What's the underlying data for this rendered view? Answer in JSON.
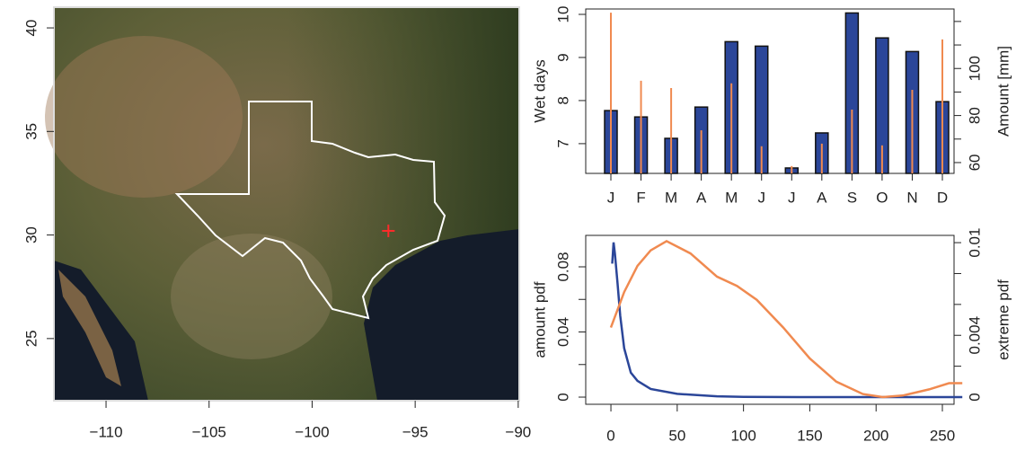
{
  "chart_data": [
    {
      "type": "map",
      "xlim": [
        -112.53,
        -89.95
      ],
      "ylim": [
        22,
        41
      ],
      "xticks": [
        {
          "value": -110,
          "label": "−110"
        },
        {
          "value": -105,
          "label": "−105"
        },
        {
          "value": -100,
          "label": "−100"
        },
        {
          "value": -95,
          "label": "−95"
        },
        {
          "value": -90,
          "label": "−90"
        }
      ],
      "yticks": [
        25,
        30,
        35,
        40
      ],
      "marker": {
        "x": -96.3,
        "y": 30.2,
        "color": "#ff2a2a"
      }
    },
    {
      "type": "bar",
      "categories": [
        "J",
        "F",
        "M",
        "A",
        "M",
        "J",
        "J",
        "A",
        "S",
        "O",
        "N",
        "D"
      ],
      "series": [
        {
          "name": "Wet days",
          "color": "#f08a50",
          "values": [
            10.04,
            8.46,
            8.29,
            7.31,
            8.4,
            6.94,
            6.48,
            7.0,
            7.79,
            6.96,
            8.25,
            9.42
          ]
        },
        {
          "name": "Amount [mm]",
          "color": "#2b4699",
          "axis": "y2",
          "values": [
            82.1,
            79.4,
            70.3,
            83.6,
            111.4,
            109.5,
            57.7,
            72.6,
            123.6,
            113.0,
            107.2,
            85.9
          ]
        }
      ],
      "ylim": [
        6.31,
        10.125
      ],
      "yticks": [
        7,
        8,
        9,
        10
      ],
      "y2lim": [
        55.4,
        125.3
      ],
      "y2ticks": [
        60,
        80,
        100
      ],
      "y2minorticks": [
        70,
        90,
        110,
        120
      ]
    },
    {
      "type": "line",
      "series": [
        {
          "name": "amount pdf",
          "color": "#2b4699",
          "x": [
            1,
            2,
            3,
            5,
            7,
            10,
            15,
            20,
            30,
            50,
            80,
            100,
            150,
            200,
            265
          ],
          "values": [
            0.082,
            0.095,
            0.088,
            0.07,
            0.05,
            0.03,
            0.015,
            0.01,
            0.005,
            0.002,
            0.0005,
            0.0002,
            0,
            0,
            0
          ]
        },
        {
          "name": "extreme pdf",
          "color": "#f08a50",
          "axis": "y2",
          "x": [
            0,
            10,
            20,
            30,
            42,
            60,
            80,
            95,
            110,
            130,
            150,
            170,
            190,
            205,
            220,
            240,
            255,
            265
          ],
          "values": [
            0.0045,
            0.0068,
            0.0085,
            0.0095,
            0.0101,
            0.0093,
            0.0078,
            0.0072,
            0.0063,
            0.0045,
            0.0025,
            0.001,
            0.0002,
            0,
            0.0001,
            0.0005,
            0.0009,
            0.0009
          ]
        }
      ],
      "xlim": [
        -19,
        258.8
      ],
      "xticks": [
        0,
        50,
        100,
        150,
        200,
        250
      ],
      "ylim": [
        -0.0044,
        0.0993
      ],
      "yticks": [
        0,
        0.04,
        0.08
      ],
      "yminorticks": [
        0.02,
        0.06
      ],
      "y2lim": [
        -0.000465,
        0.01047
      ],
      "y2ticks": [
        0,
        0.004,
        0.01
      ],
      "y2minorticks": [
        0.002,
        0.006,
        0.008
      ]
    }
  ]
}
